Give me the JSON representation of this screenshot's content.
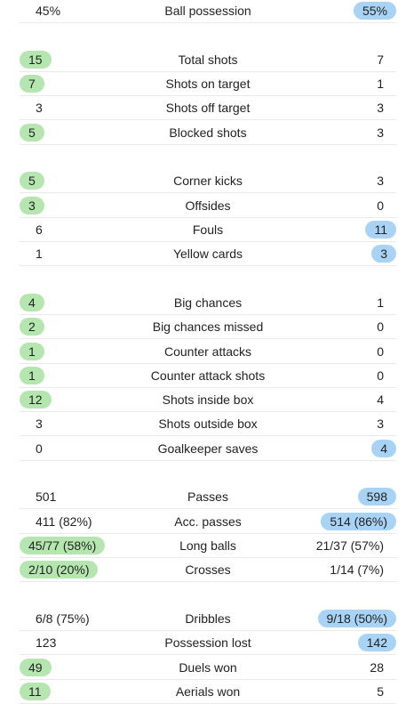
{
  "groups": [
    {
      "rows": [
        {
          "label": "Ball possession",
          "home": "45%",
          "away": "55%",
          "highlight": "away"
        }
      ]
    },
    {
      "rows": [
        {
          "label": "Total shots",
          "home": "15",
          "away": "7",
          "highlight": "home"
        },
        {
          "label": "Shots on target",
          "home": "7",
          "away": "1",
          "highlight": "home"
        },
        {
          "label": "Shots off target",
          "home": "3",
          "away": "3",
          "highlight": ""
        },
        {
          "label": "Blocked shots",
          "home": "5",
          "away": "3",
          "highlight": "home"
        }
      ]
    },
    {
      "rows": [
        {
          "label": "Corner kicks",
          "home": "5",
          "away": "3",
          "highlight": "home"
        },
        {
          "label": "Offsides",
          "home": "3",
          "away": "0",
          "highlight": "home"
        },
        {
          "label": "Fouls",
          "home": "6",
          "away": "11",
          "highlight": "away"
        },
        {
          "label": "Yellow cards",
          "home": "1",
          "away": "3",
          "highlight": "away"
        }
      ]
    },
    {
      "rows": [
        {
          "label": "Big chances",
          "home": "4",
          "away": "1",
          "highlight": "home"
        },
        {
          "label": "Big chances missed",
          "home": "2",
          "away": "0",
          "highlight": "home"
        },
        {
          "label": "Counter attacks",
          "home": "1",
          "away": "0",
          "highlight": "home"
        },
        {
          "label": "Counter attack shots",
          "home": "1",
          "away": "0",
          "highlight": "home"
        },
        {
          "label": "Shots inside box",
          "home": "12",
          "away": "4",
          "highlight": "home"
        },
        {
          "label": "Shots outside box",
          "home": "3",
          "away": "3",
          "highlight": ""
        },
        {
          "label": "Goalkeeper saves",
          "home": "0",
          "away": "4",
          "highlight": "away"
        }
      ]
    },
    {
      "rows": [
        {
          "label": "Passes",
          "home": "501",
          "away": "598",
          "highlight": "away"
        },
        {
          "label": "Acc. passes",
          "home": "411 (82%)",
          "away": "514 (86%)",
          "highlight": "away"
        },
        {
          "label": "Long balls",
          "home": "45/77 (58%)",
          "away": "21/37 (57%)",
          "highlight": "home"
        },
        {
          "label": "Crosses",
          "home": "2/10 (20%)",
          "away": "1/14 (7%)",
          "highlight": "home"
        }
      ]
    },
    {
      "rows": [
        {
          "label": "Dribbles",
          "home": "6/8 (75%)",
          "away": "9/18 (50%)",
          "highlight": "away"
        },
        {
          "label": "Possession lost",
          "home": "123",
          "away": "142",
          "highlight": "away"
        },
        {
          "label": "Duels won",
          "home": "49",
          "away": "28",
          "highlight": "home"
        },
        {
          "label": "Aerials won",
          "home": "11",
          "away": "5",
          "highlight": "home"
        }
      ]
    }
  ],
  "colors": {
    "home_highlight": "#b5e6b0",
    "away_highlight": "#a9d3f5"
  }
}
